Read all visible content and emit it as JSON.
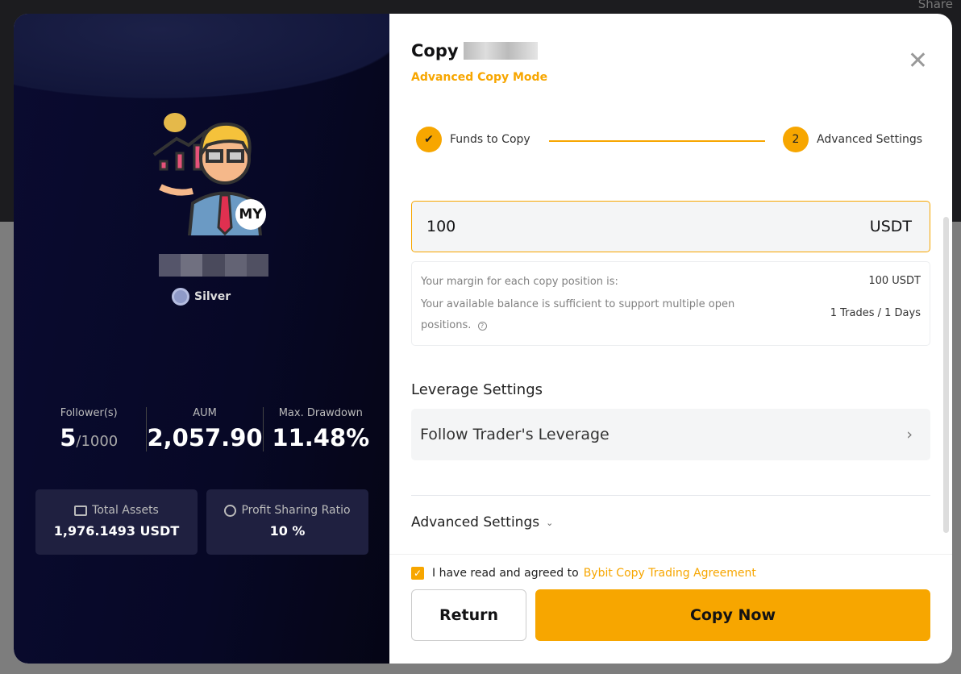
{
  "background": {
    "share_label": "Share"
  },
  "trader": {
    "country_badge": "MY",
    "tier": "Silver",
    "stats": [
      {
        "label": "Follower(s)",
        "value": "5",
        "sub": "/1000"
      },
      {
        "label": "AUM",
        "value": "2,057.90"
      },
      {
        "label": "Max. Drawdown",
        "value": "11.48%"
      }
    ],
    "cards": [
      {
        "label": "Total Assets",
        "value": "1,976.1493 USDT",
        "icon": "wallet-icon"
      },
      {
        "label": "Profit Sharing Ratio",
        "value": "10 %",
        "icon": "pie-chart-icon"
      }
    ]
  },
  "dialog": {
    "title": "Copy",
    "mode": "Advanced Copy Mode",
    "steps": [
      {
        "label": "Funds to Copy",
        "state": "done"
      },
      {
        "number": "2",
        "label": "Advanced Settings",
        "state": "active"
      }
    ],
    "amount": {
      "value": "100",
      "unit": "USDT"
    },
    "info": {
      "margin_label": "Your margin for each copy position is:",
      "margin_value": "100 USDT",
      "balance_label": "Your available balance is sufficient to support multiple open positions.",
      "balance_value": "1 Trades / 1 Days"
    },
    "leverage_title": "Leverage Settings",
    "leverage_value": "Follow Trader's Leverage",
    "advanced_label": "Advanced Settings",
    "agreement_text": "I have read and agreed to",
    "agreement_link": "Bybit Copy Trading Agreement",
    "return_label": "Return",
    "copy_label": "Copy Now"
  },
  "colors": {
    "accent": "#f7a600",
    "left_bg": "#070826"
  }
}
